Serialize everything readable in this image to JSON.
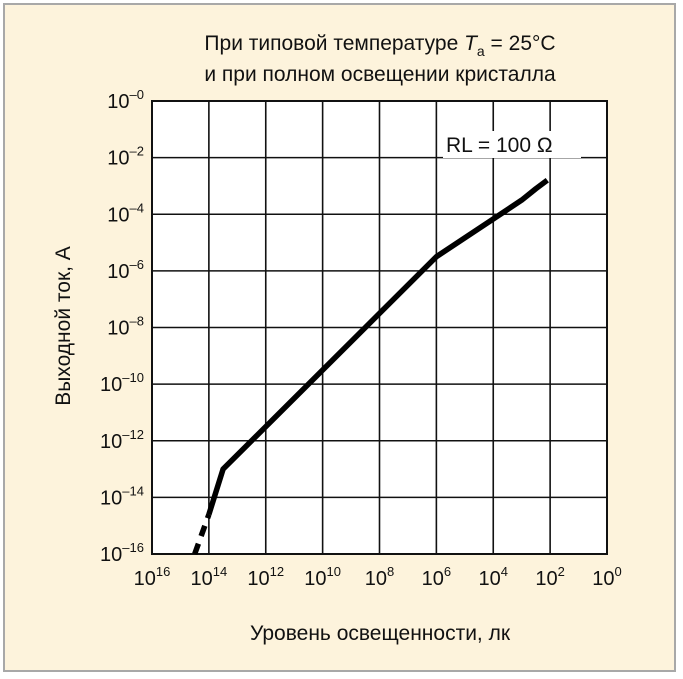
{
  "chart_data": {
    "type": "line",
    "title_lines": [
      "При типовой температуре T",
      "и при полном освещении кристалла"
    ],
    "title_sub": "a",
    "title_tail": " = 25°C",
    "xlabel": "Уровень освещенности, лк",
    "ylabel": "Выходной ток, А",
    "x_scale": "log",
    "y_scale": "log",
    "x_tick_base": "10",
    "x_tick_exps": [
      "16",
      "14",
      "12",
      "10",
      "8",
      "6",
      "4",
      "2",
      "0"
    ],
    "y_tick_base": "10",
    "y_tick_exps": [
      "–0",
      "–2",
      "–4",
      "–6",
      "–8",
      "–10",
      "–12",
      "–14",
      "–16"
    ],
    "xlim": [
      1e+16,
      1
    ],
    "ylim": [
      1e-16,
      1
    ],
    "grid": true,
    "annotation": "RL = 100 Ω",
    "series": [
      {
        "style": "dashed",
        "points": [
          [
            316000000000000.0,
            1e-16
          ],
          [
            100000000000000.0,
            2.5e-15
          ]
        ]
      },
      {
        "style": "solid",
        "points": [
          [
            100000000000000.0,
            2.5e-15
          ],
          [
            31600000000000.0,
            1e-13
          ],
          [
            1000000000.0,
            3.16e-09
          ],
          [
            1000000.0,
            3.16e-06
          ],
          [
            1000.0,
            0.000316
          ],
          [
            316.0,
            0.0008
          ],
          [
            126.0,
            0.0016
          ]
        ]
      }
    ]
  }
}
